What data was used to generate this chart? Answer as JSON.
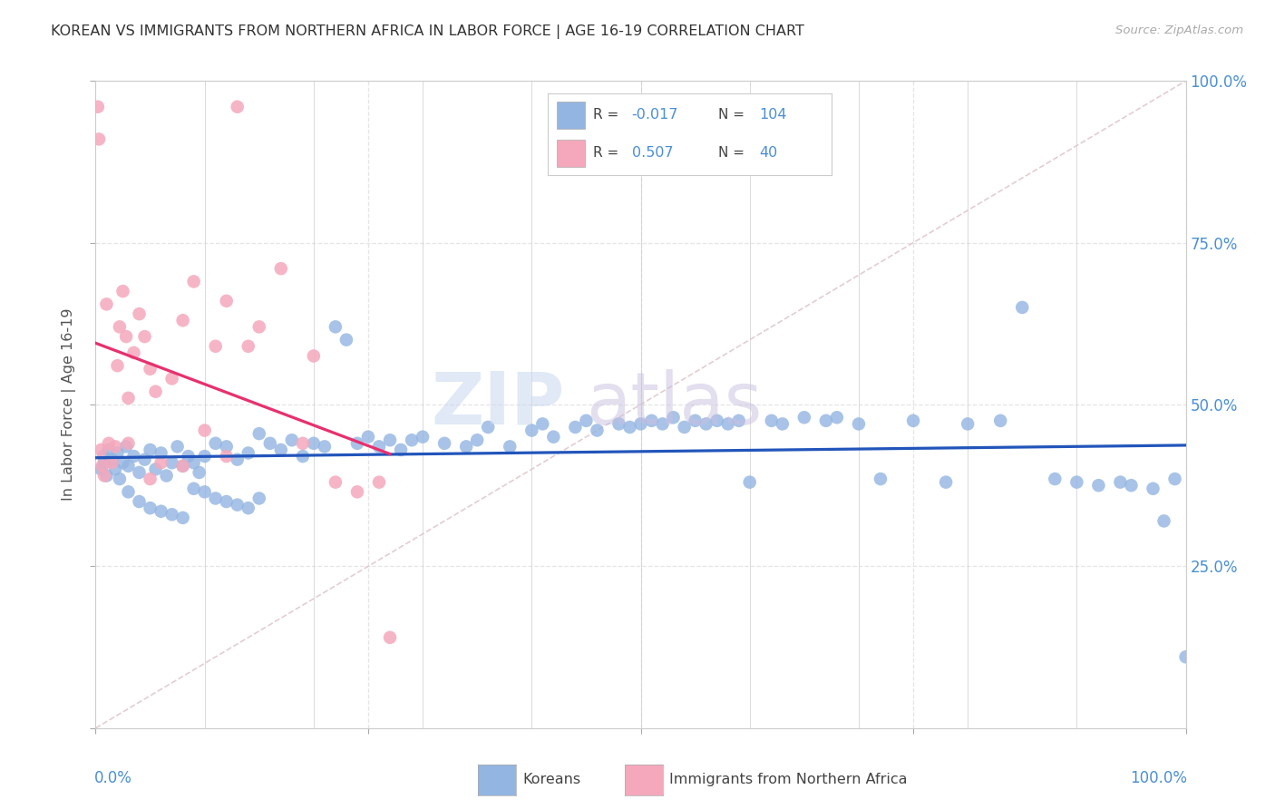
{
  "title": "KOREAN VS IMMIGRANTS FROM NORTHERN AFRICA IN LABOR FORCE | AGE 16-19 CORRELATION CHART",
  "source": "Source: ZipAtlas.com",
  "ylabel": "In Labor Force | Age 16-19",
  "korean_color": "#93b5e1",
  "nafrica_color": "#f5a8bc",
  "trend_korean_color": "#2255bb",
  "trend_nafrica_color": "#e8306e",
  "identity_color": "#e0c8cc",
  "background_color": "#ffffff",
  "grid_color": "#e5e5e5",
  "axis_label_color": "#4a8fd4",
  "text_color": "#444444",
  "r_korean": -0.017,
  "n_korean": 104,
  "r_nafrica": 0.507,
  "n_nafrica": 40,
  "korean_x": [
    0.5,
    0.7,
    0.8,
    1.0,
    1.2,
    1.5,
    1.8,
    2.0,
    2.2,
    2.5,
    2.8,
    3.0,
    3.5,
    4.0,
    4.5,
    5.0,
    5.5,
    6.0,
    6.5,
    7.0,
    7.5,
    8.0,
    8.5,
    9.0,
    9.5,
    10.0,
    11.0,
    12.0,
    13.0,
    14.0,
    15.0,
    16.0,
    17.0,
    18.0,
    19.0,
    20.0,
    21.0,
    22.0,
    23.0,
    24.0,
    25.0,
    26.0,
    27.0,
    28.0,
    29.0,
    30.0,
    32.0,
    34.0,
    35.0,
    36.0,
    38.0,
    40.0,
    41.0,
    42.0,
    44.0,
    45.0,
    46.0,
    48.0,
    49.0,
    50.0,
    51.0,
    52.0,
    53.0,
    54.0,
    55.0,
    56.0,
    57.0,
    58.0,
    59.0,
    60.0,
    62.0,
    63.0,
    65.0,
    67.0,
    68.0,
    70.0,
    72.0,
    75.0,
    78.0,
    80.0,
    83.0,
    85.0,
    88.0,
    90.0,
    92.0,
    94.0,
    95.0,
    97.0,
    98.0,
    99.0,
    100.0,
    3.0,
    4.0,
    5.0,
    6.0,
    7.0,
    8.0,
    9.0,
    10.0,
    11.0,
    12.0,
    13.0,
    14.0,
    15.0
  ],
  "korean_y": [
    40.0,
    42.0,
    41.0,
    39.0,
    43.0,
    41.5,
    40.0,
    42.5,
    38.5,
    41.0,
    43.5,
    40.5,
    42.0,
    39.5,
    41.5,
    43.0,
    40.0,
    42.5,
    39.0,
    41.0,
    43.5,
    40.5,
    42.0,
    41.0,
    39.5,
    42.0,
    44.0,
    43.5,
    41.5,
    42.5,
    45.5,
    44.0,
    43.0,
    44.5,
    42.0,
    44.0,
    43.5,
    62.0,
    60.0,
    44.0,
    45.0,
    43.5,
    44.5,
    43.0,
    44.5,
    45.0,
    44.0,
    43.5,
    44.5,
    46.5,
    43.5,
    46.0,
    47.0,
    45.0,
    46.5,
    47.5,
    46.0,
    47.0,
    46.5,
    47.0,
    47.5,
    47.0,
    48.0,
    46.5,
    47.5,
    47.0,
    47.5,
    47.0,
    47.5,
    38.0,
    47.5,
    47.0,
    48.0,
    47.5,
    48.0,
    47.0,
    38.5,
    47.5,
    38.0,
    47.0,
    47.5,
    65.0,
    38.5,
    38.0,
    37.5,
    38.0,
    37.5,
    37.0,
    32.0,
    38.5,
    11.0,
    36.5,
    35.0,
    34.0,
    33.5,
    33.0,
    32.5,
    37.0,
    36.5,
    35.5,
    35.0,
    34.5,
    34.0,
    35.5
  ],
  "nafrica_x": [
    0.2,
    0.3,
    0.5,
    0.6,
    0.8,
    1.0,
    1.2,
    1.5,
    1.8,
    2.0,
    2.2,
    2.5,
    2.8,
    3.0,
    3.5,
    4.0,
    4.5,
    5.0,
    5.5,
    6.0,
    7.0,
    8.0,
    9.0,
    10.0,
    11.0,
    12.0,
    13.0,
    14.0,
    15.0,
    17.0,
    19.0,
    20.0,
    22.0,
    24.0,
    26.0,
    27.0,
    3.0,
    5.0,
    8.0,
    12.0
  ],
  "nafrica_y": [
    96.0,
    91.0,
    43.0,
    40.5,
    39.0,
    65.5,
    44.0,
    41.0,
    43.5,
    56.0,
    62.0,
    67.5,
    60.5,
    51.0,
    58.0,
    64.0,
    60.5,
    55.5,
    52.0,
    41.0,
    54.0,
    63.0,
    69.0,
    46.0,
    59.0,
    66.0,
    96.0,
    59.0,
    62.0,
    71.0,
    44.0,
    57.5,
    38.0,
    36.5,
    38.0,
    14.0,
    44.0,
    38.5,
    40.5,
    42.0
  ]
}
